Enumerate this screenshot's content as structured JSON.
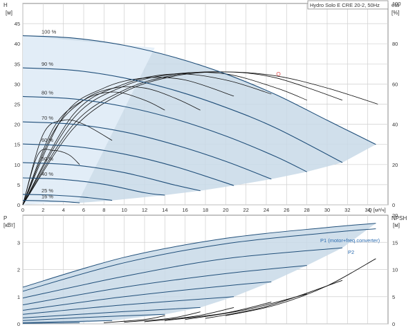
{
  "chart_data": [
    {
      "type": "line",
      "panel": "head-efficiency",
      "title": "Hydro Solo E CRE 20-2, 50Hz",
      "xlabel": "Q [м³/ч]",
      "ylabel_left_symbol": "H",
      "ylabel_left_unit": "[м]",
      "ylabel_right_symbol": "eta",
      "ylabel_right_unit": "[%]",
      "xlim": [
        0,
        36
      ],
      "ylim_left": [
        0,
        50
      ],
      "ylim_right": [
        0,
        100
      ],
      "x_ticks": [
        0,
        2,
        4,
        6,
        8,
        10,
        12,
        14,
        16,
        18,
        20,
        22,
        24,
        26,
        28,
        30,
        32,
        34
      ],
      "y_ticks_left": [
        0,
        5,
        10,
        15,
        20,
        25,
        30,
        35,
        40,
        45
      ],
      "y_ticks_right": [
        0,
        20,
        40,
        60,
        80,
        100
      ],
      "grid": true,
      "operating_range_fill": "#c8d9e8",
      "head_curve_color": "#1f4e79",
      "efficiency_curve_color": "#111111",
      "duty_point": {
        "x": 25.2,
        "y": 32.5,
        "color": "#e05050"
      },
      "speed_curves": [
        {
          "label": "100 %",
          "x": [
            0,
            5,
            10,
            15,
            20,
            25,
            30,
            34.8
          ],
          "y": [
            42,
            41.4,
            39.6,
            36.6,
            32.5,
            27.3,
            21.0,
            15.0
          ]
        },
        {
          "label": "90 %",
          "x": [
            0,
            5,
            10,
            15,
            20,
            25,
            31.5
          ],
          "y": [
            34,
            33.4,
            31.5,
            28.4,
            24.2,
            19.0,
            10.5
          ]
        },
        {
          "label": "80 %",
          "x": [
            0,
            5,
            10,
            15,
            20,
            25,
            28
          ],
          "y": [
            26.9,
            26.3,
            24.4,
            21.3,
            17.1,
            11.9,
            8.2
          ]
        },
        {
          "label": "70 %",
          "x": [
            0,
            5,
            10,
            15,
            20,
            24.5
          ],
          "y": [
            20.6,
            20.0,
            18.1,
            14.9,
            10.8,
            6.4
          ]
        },
        {
          "label": "60 %",
          "x": [
            0,
            5,
            10,
            15,
            20.8
          ],
          "y": [
            15.1,
            14.5,
            12.6,
            9.5,
            4.8
          ]
        },
        {
          "label": "50 %",
          "x": [
            0,
            5,
            10,
            15,
            17.5
          ],
          "y": [
            10.5,
            9.9,
            8.0,
            4.9,
            3.5
          ]
        },
        {
          "label": "40 %",
          "x": [
            0,
            4,
            8,
            12,
            14
          ],
          "y": [
            6.7,
            6.3,
            5.1,
            3.0,
            2.4
          ]
        },
        {
          "label": "25 %",
          "x": [
            0,
            3,
            6,
            8.8
          ],
          "y": [
            2.6,
            2.4,
            1.9,
            1.1
          ]
        },
        {
          "label": "16 %",
          "x": [
            0,
            2,
            4,
            5.6
          ],
          "y": [
            1.1,
            1.0,
            0.8,
            0.5
          ]
        }
      ],
      "efficiency_curves": [
        {
          "speed": "100 %",
          "x": [
            0,
            5,
            10,
            15,
            20,
            25,
            30,
            35
          ],
          "y": [
            0,
            38,
            56,
            64,
            66,
            64,
            58,
            50
          ]
        },
        {
          "speed": "90 %",
          "x": [
            0,
            5,
            10,
            15,
            20,
            25,
            31.5
          ],
          "y": [
            0,
            40,
            57,
            64.5,
            66,
            63,
            52
          ]
        },
        {
          "speed": "80 %",
          "x": [
            0,
            5,
            10,
            15,
            20,
            25,
            28
          ],
          "y": [
            0,
            43,
            59,
            65,
            65,
            58,
            52
          ]
        },
        {
          "speed": "70 %",
          "x": [
            0,
            5,
            10,
            15,
            20,
            24.5
          ],
          "y": [
            0,
            45,
            60,
            65,
            62,
            55
          ]
        },
        {
          "speed": "60 %",
          "x": [
            0,
            4,
            8,
            12,
            16,
            20.8
          ],
          "y": [
            0,
            44,
            58,
            63,
            62,
            54
          ]
        },
        {
          "speed": "50 %",
          "x": [
            0,
            3,
            6,
            9,
            12,
            15,
            17.5
          ],
          "y": [
            0,
            36,
            52,
            58,
            58,
            53,
            47
          ]
        },
        {
          "speed": "40 %",
          "x": [
            0,
            3,
            6,
            9,
            12,
            14
          ],
          "y": [
            0,
            38,
            52,
            56,
            52,
            47
          ]
        },
        {
          "speed": "25 %",
          "x": [
            0,
            2,
            4,
            6,
            8.8
          ],
          "y": [
            0,
            35,
            42,
            40,
            32
          ]
        },
        {
          "speed": "16 %",
          "x": [
            0,
            1.5,
            3,
            4.5,
            5.6
          ],
          "y": [
            0,
            25,
            27,
            25,
            20
          ]
        }
      ]
    },
    {
      "type": "line",
      "panel": "power-npsh",
      "ylabel_left_symbol": "P",
      "ylabel_left_unit": "[кВт]",
      "ylabel_right_symbol": "NPSH",
      "ylabel_right_unit": "[м]",
      "xlim": [
        0,
        36
      ],
      "ylim_left": [
        0,
        4
      ],
      "ylim_right": [
        0,
        20
      ],
      "y_ticks_left": [
        0,
        1,
        2,
        3
      ],
      "y_ticks_right": [
        0,
        5,
        10,
        15,
        20
      ],
      "grid": true,
      "legend": [
        "P1 (motor+freq.converter)",
        "P2"
      ],
      "power_series": [
        {
          "name": "P1 (motor+freq.converter)",
          "speed": "100 %",
          "x": [
            0,
            10,
            20,
            30,
            34.8
          ],
          "y": [
            1.35,
            2.45,
            3.15,
            3.55,
            3.7
          ]
        },
        {
          "name": "P2",
          "speed": "100 %",
          "x": [
            0,
            10,
            20,
            30,
            34.8
          ],
          "y": [
            1.2,
            2.25,
            2.95,
            3.35,
            3.5
          ]
        },
        {
          "speed": "90 %",
          "x": [
            0,
            10,
            20,
            31.5
          ],
          "y": [
            0.95,
            1.75,
            2.4,
            2.8
          ]
        },
        {
          "speed": "80 %",
          "x": [
            0,
            10,
            20,
            28
          ],
          "y": [
            0.7,
            1.35,
            1.85,
            2.15
          ]
        },
        {
          "speed": "70 %",
          "x": [
            0,
            10,
            20,
            24.5
          ],
          "y": [
            0.5,
            1.0,
            1.4,
            1.55
          ]
        },
        {
          "speed": "60 %",
          "x": [
            0,
            10,
            20.8
          ],
          "y": [
            0.35,
            0.7,
            1.0
          ]
        },
        {
          "speed": "50 %",
          "x": [
            0,
            10,
            17.5
          ],
          "y": [
            0.22,
            0.45,
            0.6
          ]
        },
        {
          "speed": "40 %",
          "x": [
            0,
            7,
            14
          ],
          "y": [
            0.12,
            0.25,
            0.35
          ]
        },
        {
          "speed": "25 %",
          "x": [
            0,
            4,
            8.8
          ],
          "y": [
            0.04,
            0.08,
            0.12
          ]
        },
        {
          "speed": "16 %",
          "x": [
            0,
            3,
            5.6
          ],
          "y": [
            0.02,
            0.03,
            0.04
          ]
        }
      ],
      "npsh_series": [
        {
          "speed": "100 %",
          "x": [
            20,
            25,
            30,
            34.8
          ],
          "y": [
            1.5,
            3.5,
            7.0,
            12.0
          ]
        },
        {
          "speed": "90 %",
          "x": [
            18,
            24,
            31.5
          ],
          "y": [
            1.0,
            3.2,
            8.0
          ]
        },
        {
          "speed": "80 %",
          "x": [
            16,
            22,
            28
          ],
          "y": [
            0.8,
            2.6,
            5.5
          ]
        },
        {
          "speed": "70 %",
          "x": [
            14,
            20,
            24.5
          ],
          "y": [
            0.6,
            2.0,
            4.0
          ]
        },
        {
          "speed": "60 %",
          "x": [
            12,
            17,
            20.8
          ],
          "y": [
            0.4,
            1.4,
            3.0
          ]
        },
        {
          "speed": "50 %",
          "x": [
            10,
            14.5,
            17.5
          ],
          "y": [
            0.3,
            1.0,
            2.2
          ]
        },
        {
          "speed": "40 %",
          "x": [
            8,
            12,
            14
          ],
          "y": [
            0.2,
            0.8,
            1.5
          ]
        }
      ]
    }
  ]
}
